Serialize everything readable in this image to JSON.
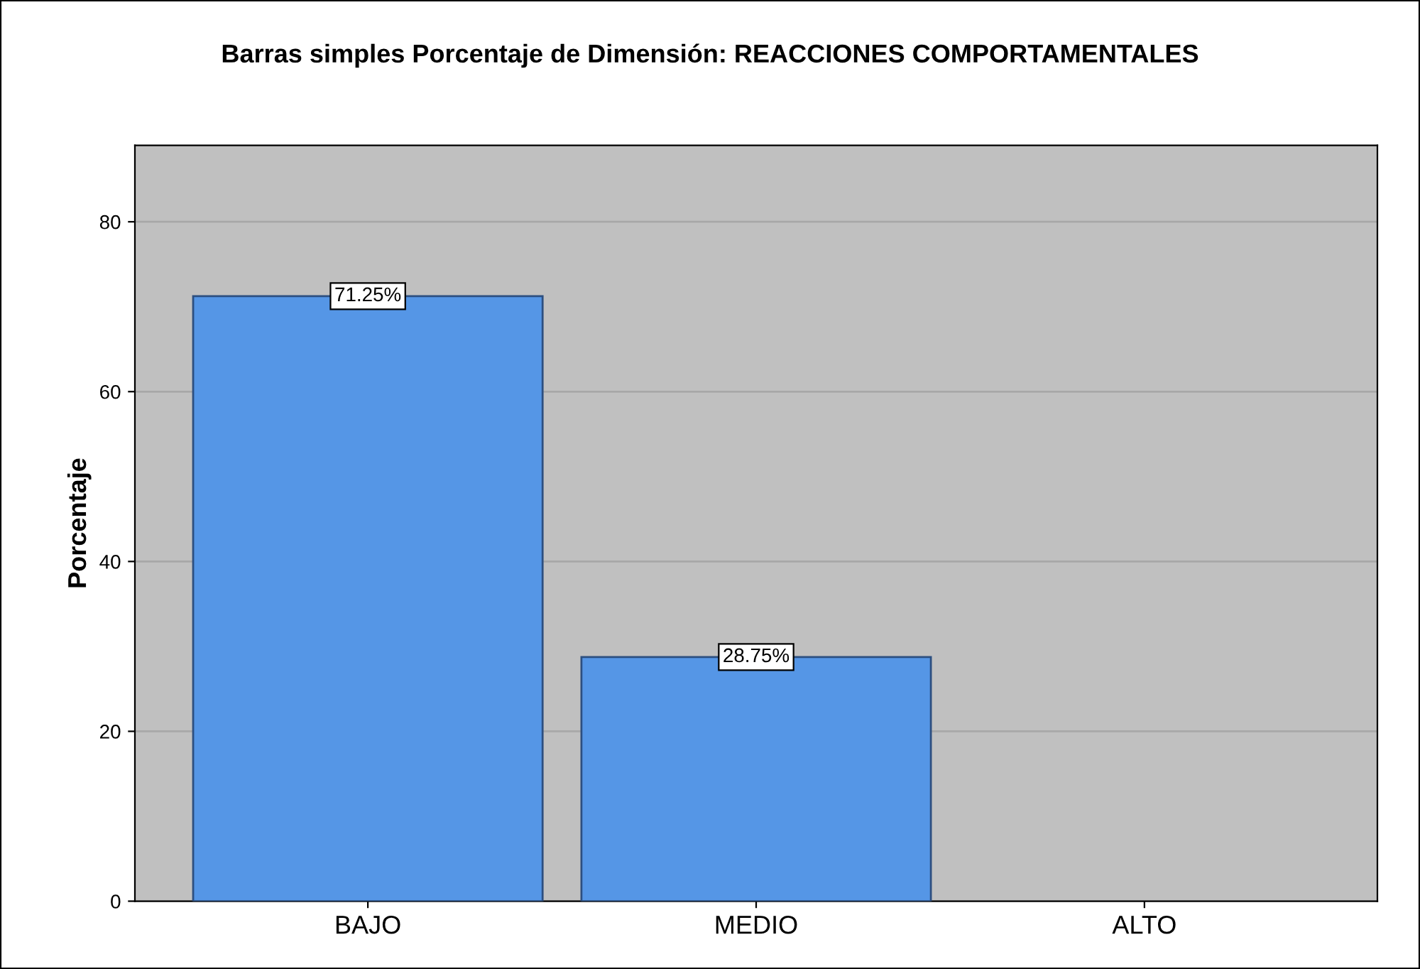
{
  "chart_data": {
    "type": "bar",
    "title": "Barras simples Porcentaje de Dimensión: REACCIONES COMPORTAMENTALES",
    "ylabel": "Porcentaje",
    "categories": [
      "BAJO",
      "MEDIO",
      "ALTO"
    ],
    "values": [
      71.25,
      28.75,
      0
    ],
    "value_labels": [
      "71.25%",
      "28.75%",
      null
    ],
    "color": "#5596e6",
    "ylim": [
      0,
      89
    ],
    "yticks": [
      0,
      20,
      40,
      60,
      80
    ],
    "grid": "y"
  }
}
